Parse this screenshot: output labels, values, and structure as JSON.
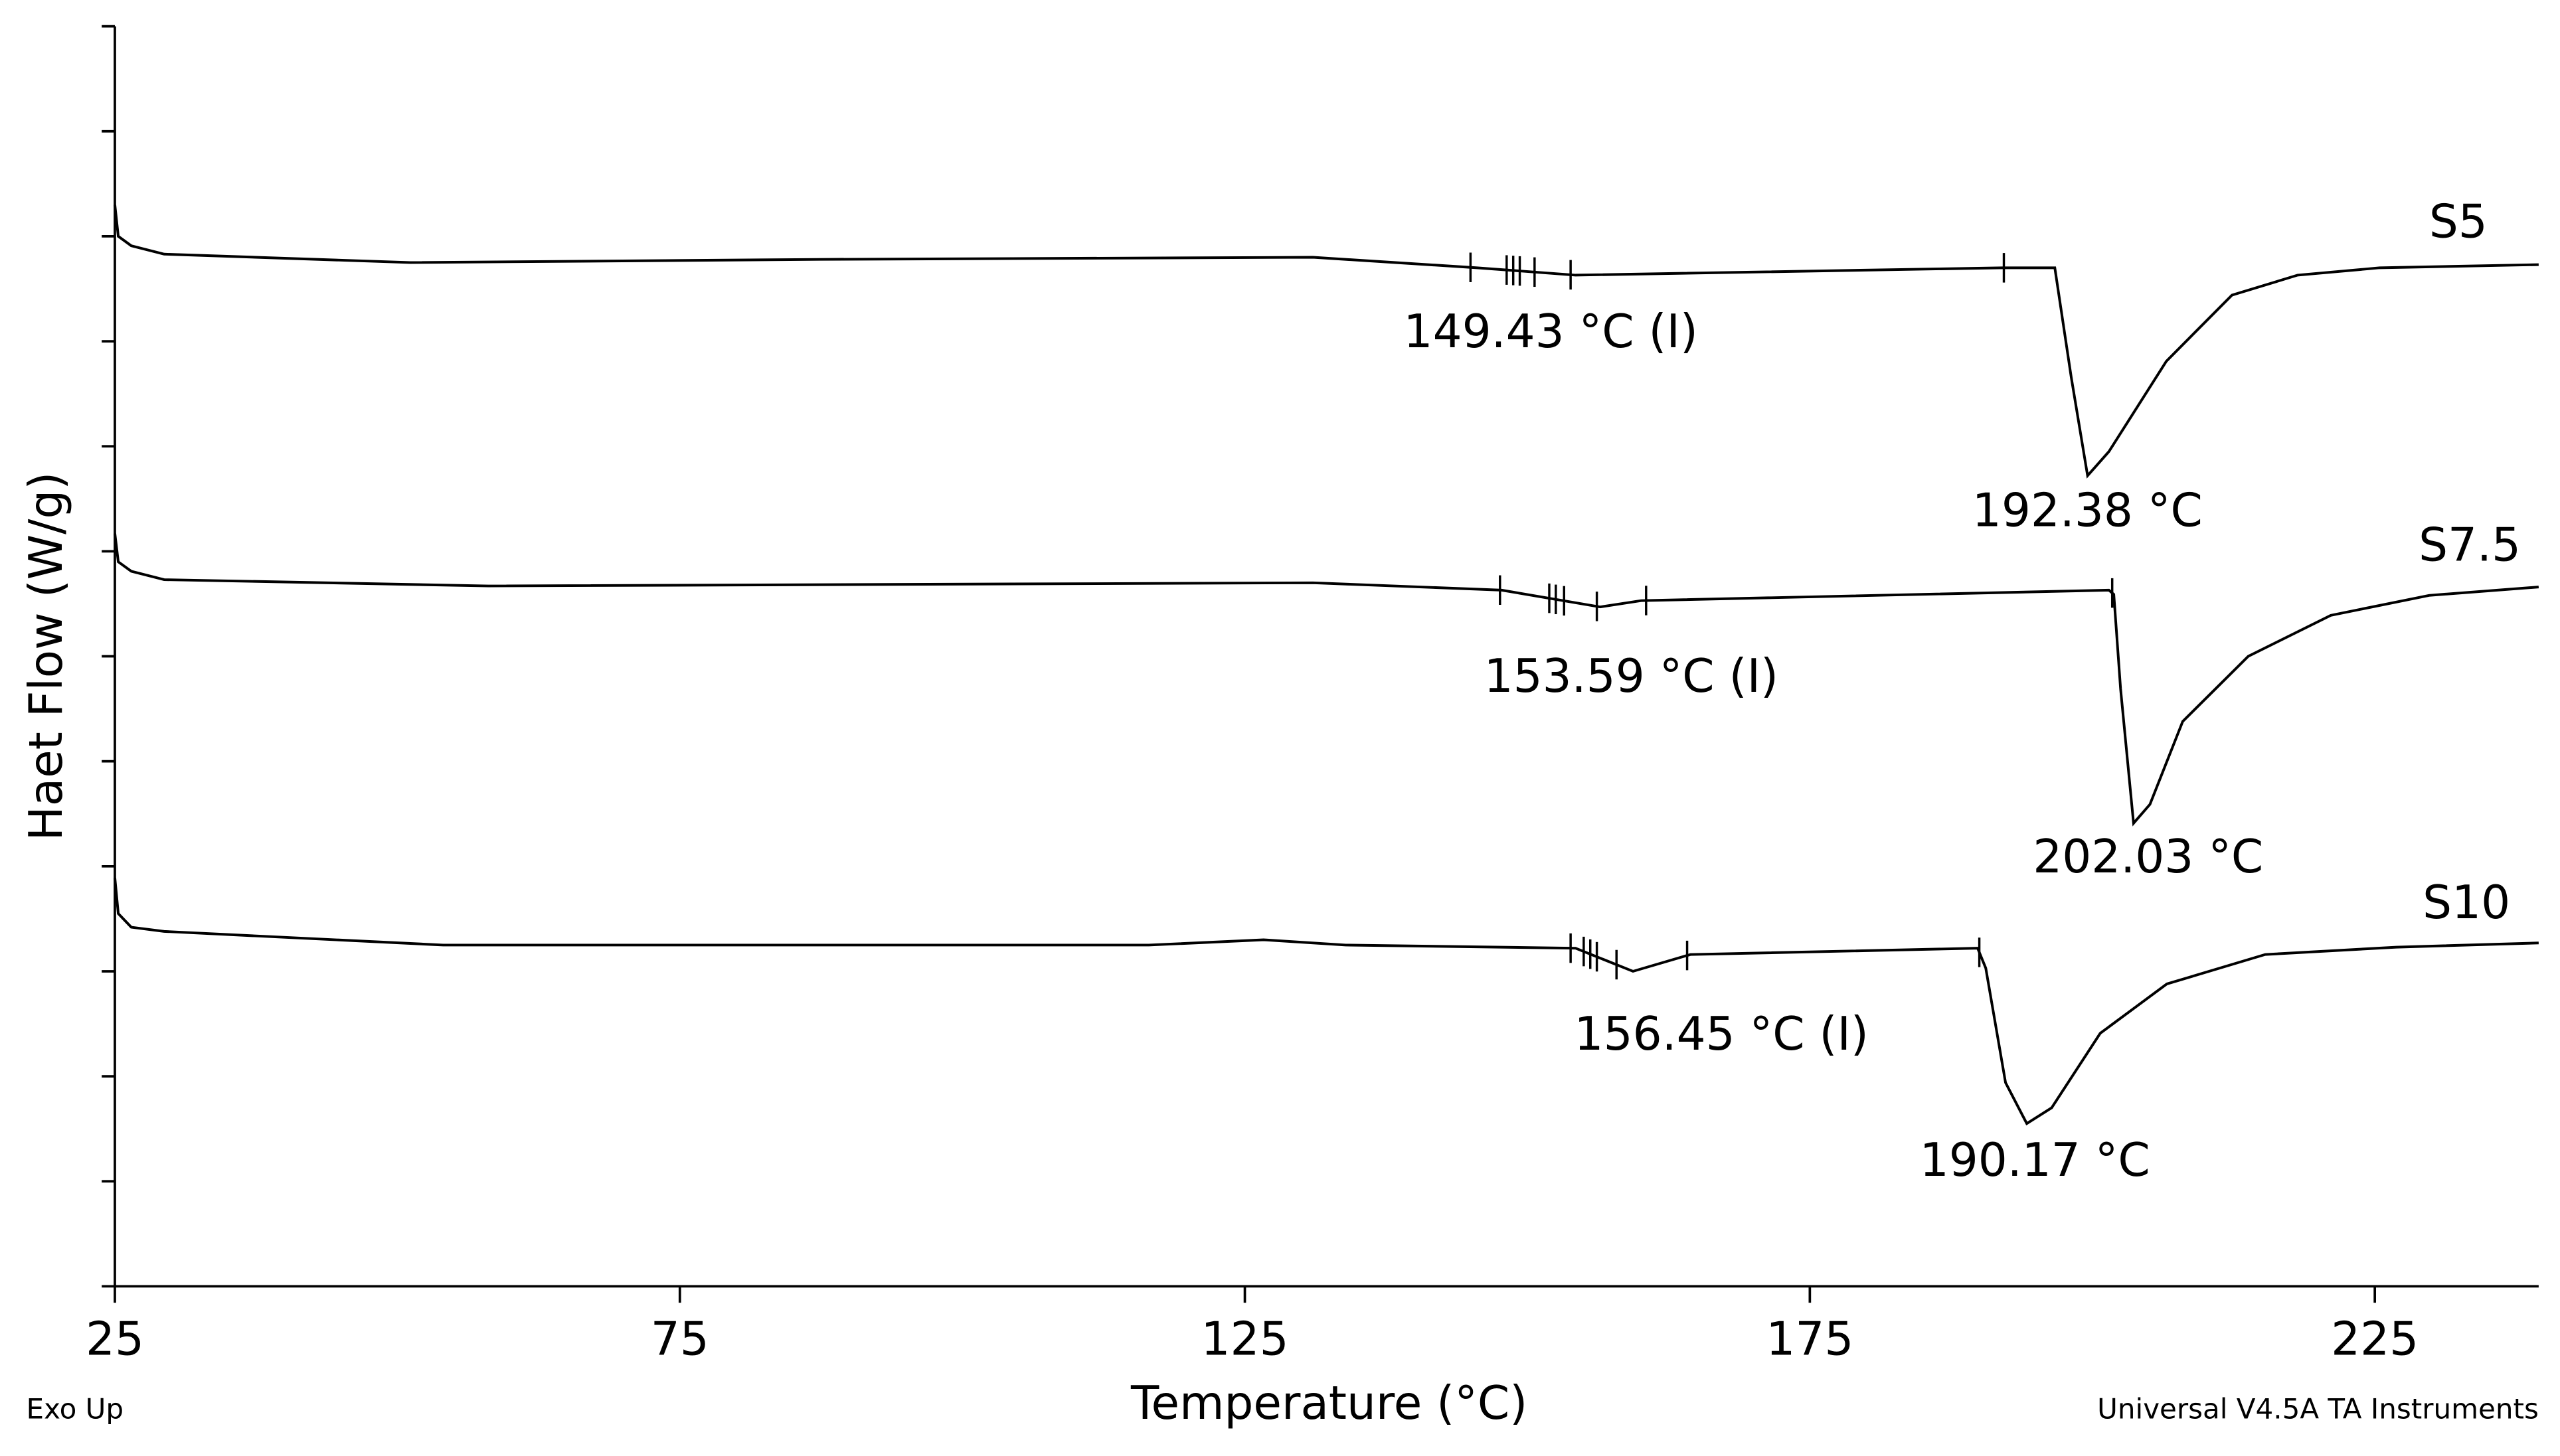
{
  "chart_data": {
    "type": "line",
    "x_label": "Temperature (°C)",
    "y_label": "Haet Flow (W/g)",
    "footer_left": "Exo Up",
    "footer_right": "Universal V4.5A TA Instruments",
    "xlim": [
      25,
      239.5
    ],
    "xticks": [
      25,
      75,
      125,
      175,
      225
    ],
    "ylim": [
      0,
      12
    ],
    "yticks": [
      0,
      1,
      2,
      3,
      4,
      5,
      6,
      7,
      8,
      9,
      10,
      11,
      12
    ],
    "ytick_labels": false,
    "series": [
      {
        "name": "S5",
        "color": "#000000",
        "x": [
          25,
          25.3,
          26.45,
          29.36,
          51.14,
          87.45,
          131.03,
          145.55,
          154.27,
          192.03,
          196.68,
          198.13,
          199.58,
          201.47,
          206.55,
          212.36,
          218.17,
          225.43,
          239.5
        ],
        "values": [
          10.3,
          10.0,
          9.91,
          9.83,
          9.75,
          9.78,
          9.8,
          9.7,
          9.63,
          9.7,
          9.7,
          8.66,
          7.72,
          7.95,
          8.81,
          9.44,
          9.63,
          9.7,
          9.73
        ],
        "markers": [
          144.97,
          148.17,
          148.75,
          149.33,
          150.64,
          153.83,
          192.17
        ]
      },
      {
        "name": "S7.5",
        "color": "#000000",
        "x": [
          25,
          25.3,
          26.45,
          29.36,
          58.05,
          131.03,
          147.73,
          156.44,
          160.07,
          201.47,
          201.9,
          202.5,
          203.65,
          205.1,
          208.0,
          213.8,
          221.1,
          229.8,
          239.5
        ],
        "values": [
          7.17,
          6.9,
          6.81,
          6.73,
          6.67,
          6.7,
          6.63,
          6.47,
          6.53,
          6.63,
          6.59,
          5.69,
          4.41,
          4.59,
          5.38,
          6.0,
          6.39,
          6.58,
          6.66
        ],
        "markers": [
          147.58,
          151.94,
          152.52,
          153.25,
          156.15,
          160.51,
          201.76
        ]
      },
      {
        "name": "S10",
        "color": "#000000",
        "x": [
          25,
          25.3,
          26.45,
          29.36,
          54.05,
          116.5,
          126.67,
          133.93,
          154.27,
          159.35,
          164.43,
          189.85,
          190.57,
          192.32,
          194.2,
          196.4,
          200.7,
          206.6,
          215.3,
          226.9,
          239.5
        ],
        "values": [
          3.89,
          3.55,
          3.42,
          3.38,
          3.25,
          3.25,
          3.3,
          3.25,
          3.22,
          3.0,
          3.16,
          3.22,
          3.03,
          1.94,
          1.55,
          1.7,
          2.41,
          2.88,
          3.16,
          3.23,
          3.27
        ],
        "markers": [
          153.83,
          154.99,
          155.57,
          156.15,
          157.89,
          164.14,
          190.0
        ]
      }
    ],
    "annotations": [
      "149.43 °C (I)",
      "192.38 °C",
      "153.59 °C (I)",
      "202.03 °C",
      "156.45 °C (I)",
      "190.17 °C"
    ]
  }
}
